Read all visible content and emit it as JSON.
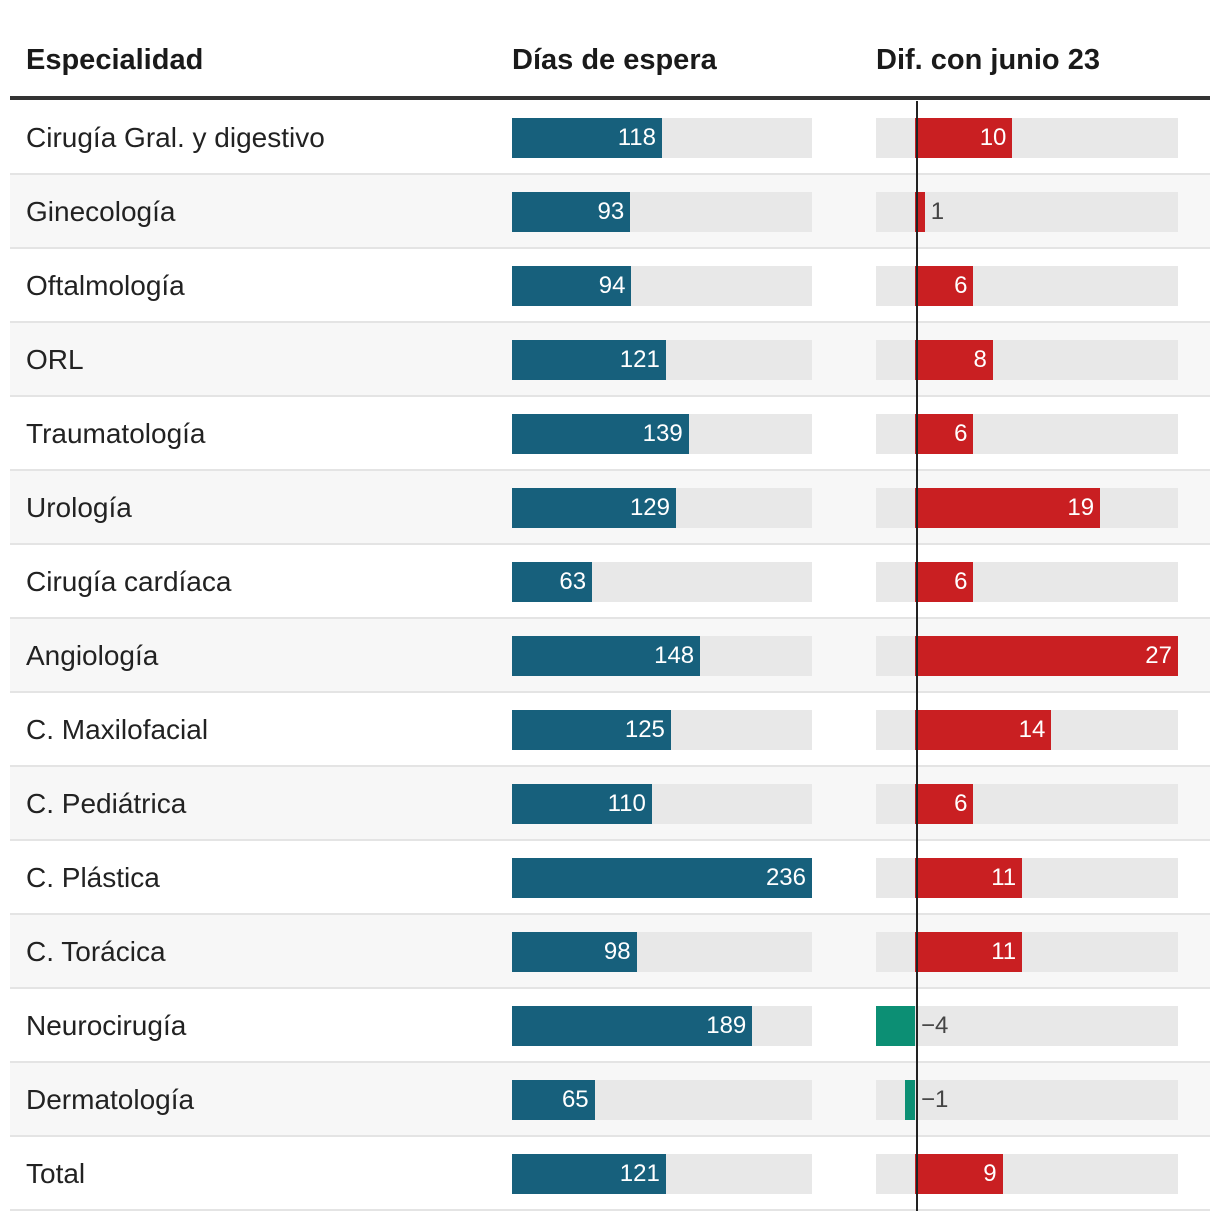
{
  "headers": {
    "specialty": "Especialidad",
    "wait_days": "Días de espera",
    "diff": "Dif. con junio 23"
  },
  "colors": {
    "wait_bar": "#17607c",
    "increase": "#c91f22",
    "decrease": "#0c8f74",
    "track": "#e8e8e8"
  },
  "chart_data": {
    "type": "bar",
    "categories": [
      "Cirugía Gral. y digestivo",
      "Ginecología",
      "Oftalmología",
      "ORL",
      "Traumatología",
      "Urología",
      "Cirugía cardíaca",
      "Angiología",
      "C. Maxilofacial",
      "C. Pediátrica",
      "C. Plástica",
      "C. Torácica",
      "Neurocirugía",
      "Dermatología",
      "Total"
    ],
    "series": [
      {
        "name": "Días de espera",
        "values": [
          118,
          93,
          94,
          121,
          139,
          129,
          63,
          148,
          125,
          110,
          236,
          98,
          189,
          65,
          121
        ],
        "xlim": [
          0,
          236
        ]
      },
      {
        "name": "Dif. con junio 23",
        "values": [
          10,
          1,
          6,
          8,
          6,
          19,
          6,
          27,
          14,
          6,
          11,
          11,
          -4,
          -1,
          9
        ],
        "xlim": [
          -4,
          27
        ]
      }
    ],
    "labels": {
      "wait": [
        "118",
        "93",
        "94",
        "121",
        "139",
        "129",
        "63",
        "148",
        "125",
        "110",
        "236",
        "98",
        "189",
        "65",
        "121"
      ],
      "diff": [
        "10",
        "1",
        "6",
        "8",
        "6",
        "19",
        "6",
        "27",
        "14",
        "6",
        "11",
        "11",
        "−4",
        "−1",
        "9"
      ]
    }
  }
}
